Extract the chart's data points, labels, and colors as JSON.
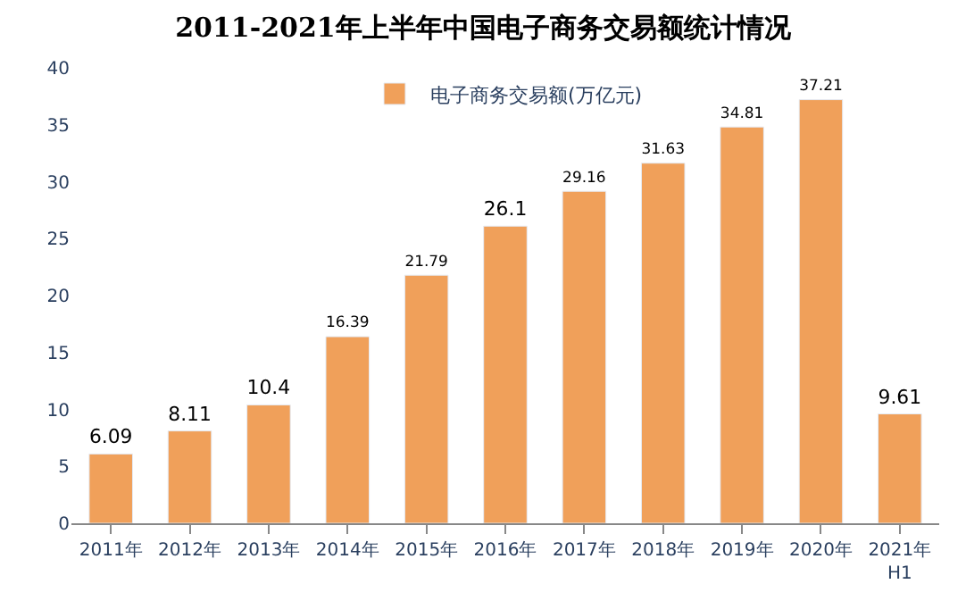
{
  "chart_data": {
    "type": "bar",
    "title": "2011-2021年上半年中国电子商务交易额统计情况",
    "categories": [
      "2011年",
      "2012年",
      "2013年",
      "2014年",
      "2015年",
      "2016年",
      "2017年",
      "2018年",
      "2019年",
      "2020年",
      "2021年\nH1"
    ],
    "series": [
      {
        "name": "电子商务交易额(万亿元)",
        "color": "#f0a05a",
        "values": [
          6.09,
          8.11,
          10.4,
          16.39,
          21.79,
          26.1,
          29.16,
          31.63,
          34.81,
          37.21,
          9.61
        ]
      }
    ],
    "ylim": [
      0,
      40
    ],
    "yticks": [
      0,
      5,
      10,
      15,
      20,
      25,
      30,
      35,
      40
    ],
    "grid": false,
    "legend": "top",
    "data_labels": true
  }
}
